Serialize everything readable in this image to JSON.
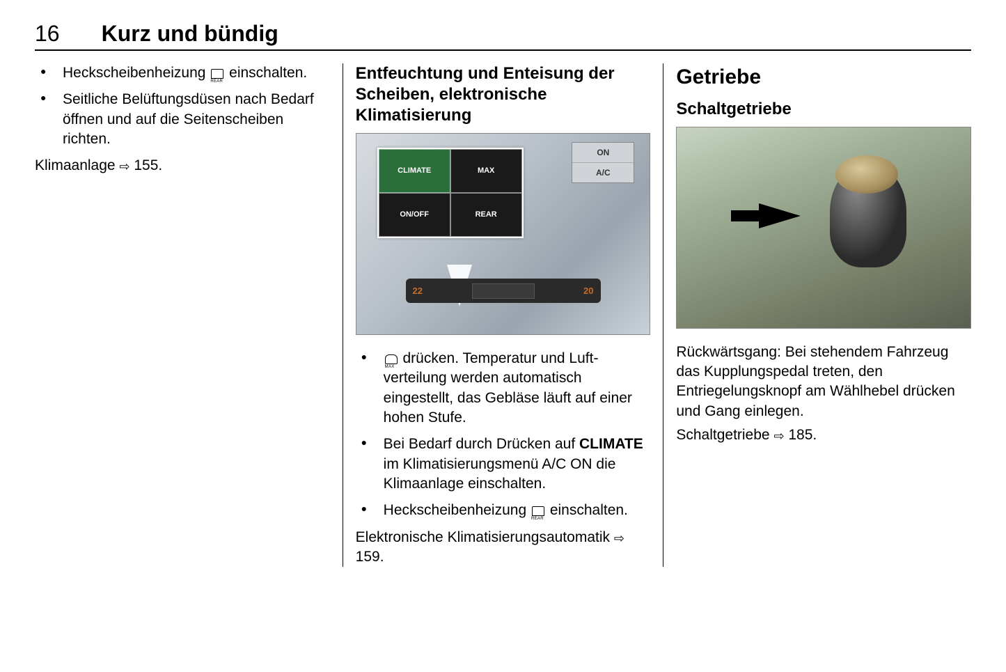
{
  "page_number": "16",
  "chapter_title": "Kurz und bündig",
  "col1": {
    "bullets": [
      "Heckscheibenheizung {REAR} einschalten.",
      "Seitliche Belüftungsdüsen nach Bedarf öffnen und auf die Seiten­scheiben richten."
    ],
    "ref": "Klimaanlage {LINK} 155."
  },
  "col2": {
    "heading": "Entfeuchtung und Enteisung der Scheiben, elektronische Klimatisierung",
    "overlay": {
      "climate_label": "CLIMATE",
      "max_label": "MAX",
      "onoff_label": "ON/OFF",
      "rear_label": "REAR",
      "on_label": "ON",
      "ac_label": "A/C",
      "temp_left": "22",
      "temp_right": "20"
    },
    "bullets": [
      "{MAX} drücken. Temperatur und Luft­verteilung werden automatisch eingestellt, das Gebläse läuft auf einer hohen Stufe.",
      "Bei Bedarf durch Drücken auf CLIMATE im Klimatisierungs­menü A/C ON die Klimaanlage einschalten.",
      "Heckscheibenheizung {REAR} einschalten."
    ],
    "ref": "Elektronische Klimatisierungsauto­matik {LINK} 159."
  },
  "col3": {
    "heading_main": "Getriebe",
    "heading_sub": "Schaltgetriebe",
    "para": "Rückwärtsgang: Bei stehendem Fahrzeug das Kupplungspedal treten, den Entriegelungsknopf am Wählhebel drücken und Gang einle­gen.",
    "ref": "Schaltgetriebe {LINK} 185."
  },
  "colors": {
    "text": "#000000",
    "background": "#ffffff",
    "overlay_green": "#2a6e3a",
    "overlay_dark": "#1a1a1a",
    "panel_num": "#c86a2a"
  },
  "fontsizes": {
    "page_num": 32,
    "chapter": 32,
    "body": 21,
    "h_sub": 24,
    "h_main": 30
  }
}
